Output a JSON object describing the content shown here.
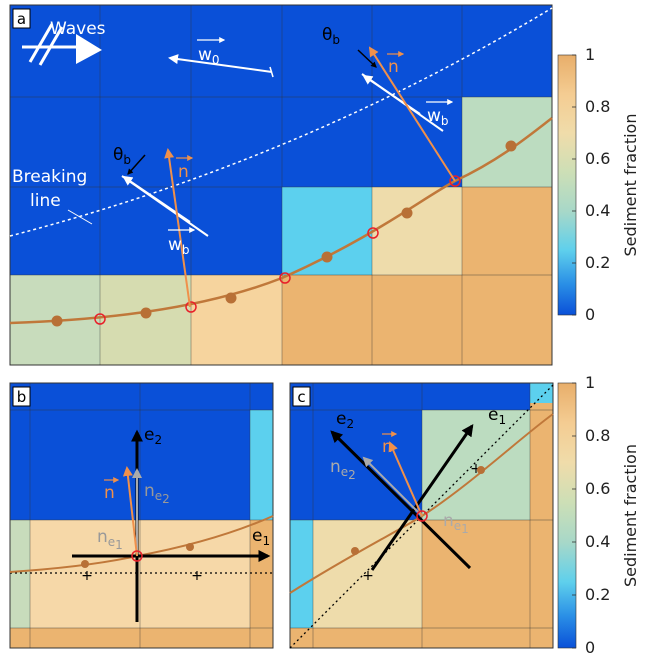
{
  "panels": [
    {
      "label": "a"
    },
    {
      "label": "b"
    },
    {
      "label": "c"
    }
  ],
  "panel_a": {
    "waves": "Waves",
    "breaking_line": [
      "Breaking",
      "line"
    ],
    "w0": {
      "symbol": "w",
      "sub": "0"
    },
    "annotations": [
      {
        "theta": {
          "symbol": "θ",
          "sub": "b"
        },
        "n": "n",
        "w": {
          "symbol": "w",
          "sub": "b"
        }
      },
      {
        "theta": {
          "symbol": "θ",
          "sub": "b"
        },
        "n": "n",
        "w": {
          "symbol": "w",
          "sub": "b"
        }
      }
    ]
  },
  "panel_b": {
    "e1": {
      "symbol": "e",
      "sub": "1"
    },
    "e2": {
      "symbol": "e",
      "sub": "2"
    },
    "n": "n",
    "ne1": {
      "symbol": "n",
      "sub": "e",
      "subsub": "1"
    },
    "ne2": {
      "symbol": "n",
      "sub": "e",
      "subsub": "2"
    }
  },
  "panel_c": {
    "e1": {
      "symbol": "e",
      "sub": "1"
    },
    "e2": {
      "symbol": "e",
      "sub": "2"
    },
    "n": "n",
    "ne1": {
      "symbol": "n",
      "sub": "e",
      "subsub": "1"
    },
    "ne2": {
      "symbol": "n",
      "sub": "e",
      "subsub": "2"
    }
  },
  "colorbars": [
    {
      "label": "Sediment fraction",
      "lim": [
        0,
        1
      ],
      "ticks": [
        0,
        0.2,
        0.4,
        0.6,
        0.8,
        1
      ]
    },
    {
      "label": "Sediment fraction",
      "lim": [
        0,
        1
      ],
      "ticks": [
        0,
        0.2,
        0.4,
        0.6,
        0.8,
        1
      ]
    }
  ]
}
